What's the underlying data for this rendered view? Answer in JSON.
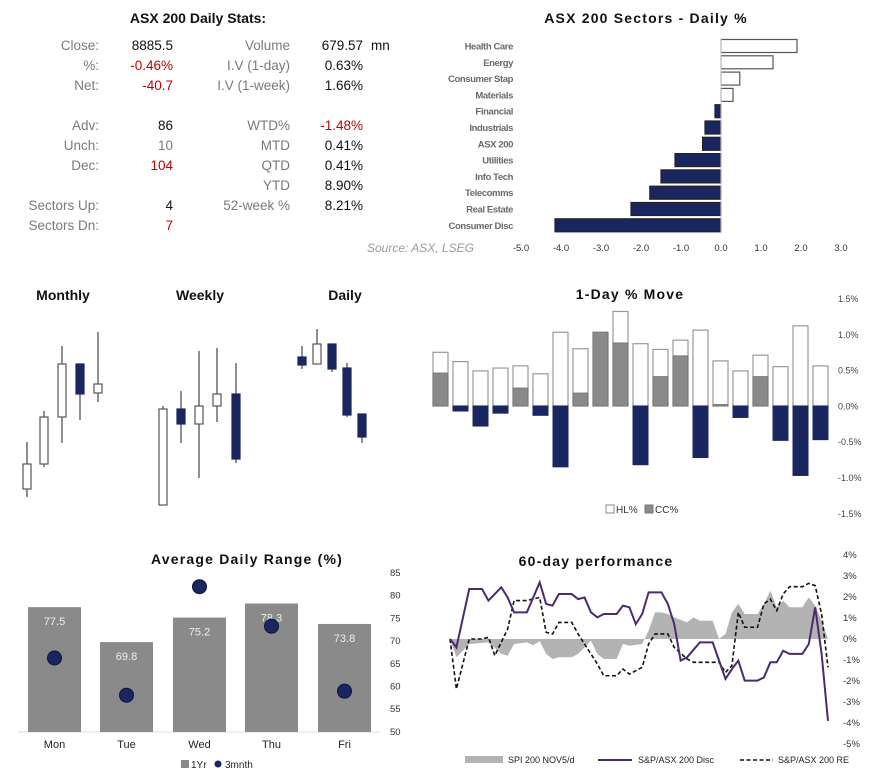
{
  "stats": {
    "title": "ASX 200 Daily Stats:",
    "left": [
      {
        "label": "Close:",
        "value": "8885.5",
        "color": "#111111"
      },
      {
        "label": "%:",
        "value": "-0.46%",
        "color": "#c00000"
      },
      {
        "label": "Net:",
        "value": "-40.7",
        "color": "#c00000"
      },
      {
        "label": "Adv:",
        "value": "86",
        "color": "#111111"
      },
      {
        "label": "Unch:",
        "value": "10",
        "color": "#7a7a7a"
      },
      {
        "label": "Dec:",
        "value": "104",
        "color": "#c00000"
      },
      {
        "label": "Sectors Up:",
        "value": "4",
        "color": "#111111"
      },
      {
        "label": "Sectors Dn:",
        "value": "7",
        "color": "#c00000"
      }
    ],
    "right": [
      {
        "label": "Volume",
        "value": "679.57",
        "unit": "mn",
        "color": "#111111"
      },
      {
        "label": "I.V (1-day)",
        "value": "0.63%",
        "color": "#111111"
      },
      {
        "label": "I.V (1-week)",
        "value": "1.66%",
        "color": "#111111"
      },
      {
        "label": "WTD%",
        "value": "-1.48%",
        "color": "#c00000"
      },
      {
        "label": "MTD",
        "value": "0.41%",
        "color": "#111111"
      },
      {
        "label": "QTD",
        "value": "0.41%",
        "color": "#111111"
      },
      {
        "label": "YTD",
        "value": "8.90%",
        "color": "#111111"
      },
      {
        "label": "52-week %",
        "value": "8.21%",
        "color": "#111111"
      }
    ],
    "source": "Source: ASX, LSEG"
  },
  "colors": {
    "navy": "#1a2660",
    "gray": "#8a8a8a",
    "purple": "#4b2a6e",
    "red": "#c00000"
  },
  "chart_data": [
    {
      "id": "sectors",
      "type": "bar",
      "orientation": "horizontal",
      "title": "ASX 200 Sectors - Daily %",
      "categories": [
        "Health Care",
        "Energy",
        "Consumer Stap",
        "Materials",
        "Financial",
        "Industrials",
        "ASX 200",
        "Utilities",
        "Info Tech",
        "Telecomms",
        "Real Estate",
        "Consumer Disc"
      ],
      "values": [
        1.9,
        1.3,
        0.47,
        0.3,
        -0.15,
        -0.4,
        -0.46,
        -1.15,
        -1.5,
        -1.78,
        -2.25,
        -4.15
      ],
      "xlim": [
        -5,
        3
      ],
      "xticks": [
        "-5.0",
        "-4.0",
        "-3.0",
        "-2.0",
        "-1.0",
        "0.0",
        "1.0",
        "2.0",
        "3.0"
      ]
    },
    {
      "id": "candles",
      "type": "candlestick",
      "panels": [
        {
          "title": "Monthly",
          "candles": [
            "up",
            "up",
            "up",
            "down",
            "up"
          ]
        },
        {
          "title": "Weekly",
          "candles": [
            "up",
            "down",
            "up",
            "up",
            "down"
          ]
        },
        {
          "title": "Daily",
          "candles": [
            "down",
            "up",
            "down",
            "down",
            "down"
          ]
        }
      ]
    },
    {
      "id": "oneday",
      "type": "bar",
      "title": "1-Day % Move",
      "series": [
        {
          "name": "HL%",
          "values": [
            0.75,
            0.62,
            0.49,
            0.53,
            0.56,
            0.45,
            1.03,
            0.8,
            1.03,
            1.32,
            0.87,
            0.79,
            0.92,
            1.06,
            0.63,
            0.49,
            0.71,
            0.55,
            1.12,
            0.56
          ]
        },
        {
          "name": "CC%",
          "values": [
            0.46,
            -0.07,
            -0.28,
            -0.1,
            0.25,
            -0.13,
            -0.85,
            0.18,
            1.03,
            0.88,
            -0.82,
            0.41,
            0.7,
            -0.72,
            0.02,
            -0.16,
            0.41,
            -0.48,
            -0.97,
            -0.47
          ]
        }
      ],
      "ylim": [
        -1.5,
        1.5
      ],
      "yticks": [
        "1.5%",
        "1.0%",
        "0.5%",
        "0.0%",
        "-0.5%",
        "-1.0%",
        "-1.5%"
      ],
      "legend": "bottom"
    },
    {
      "id": "adr",
      "type": "bar",
      "title": "Average Daily Range (%)",
      "categories": [
        "Mon",
        "Tue",
        "Wed",
        "Thu",
        "Fri"
      ],
      "series": [
        {
          "name": "1Yr",
          "values": [
            77.5,
            69.8,
            75.2,
            78.3,
            73.8
          ],
          "labels": [
            "77.5",
            "69.8",
            "75.2",
            "78.3",
            "73.8"
          ]
        },
        {
          "name": "3mnth",
          "values": [
            66.3,
            58.1,
            82.0,
            73.3,
            59.0
          ]
        }
      ],
      "ylim": [
        50,
        85
      ],
      "yticks": [
        "85",
        "80",
        "75",
        "70",
        "65",
        "60",
        "55",
        "50"
      ],
      "legend": "bottom"
    },
    {
      "id": "sixty",
      "type": "line",
      "title": "60-day performance",
      "x_count": 60,
      "series": [
        {
          "name": "SPI 200 NOV5/d",
          "style": "area",
          "points": [
            [
              0,
              0
            ],
            [
              1,
              -0.87
            ],
            [
              3,
              -0.24
            ],
            [
              6,
              -0.16
            ],
            [
              8,
              -0.7
            ],
            [
              9,
              -0.8
            ],
            [
              10,
              -0.24
            ],
            [
              12,
              -0.16
            ],
            [
              13,
              -0.3
            ],
            [
              14,
              -0.1
            ],
            [
              15,
              -0.7
            ],
            [
              16,
              -0.95
            ],
            [
              17,
              -0.87
            ],
            [
              19,
              -0.87
            ],
            [
              20,
              -0.71
            ],
            [
              21,
              -0.4
            ],
            [
              22,
              -0.08
            ],
            [
              23,
              -0.71
            ],
            [
              24,
              -0.95
            ],
            [
              26,
              -0.95
            ],
            [
              27,
              -0.24
            ],
            [
              28,
              -0.32
            ],
            [
              30,
              -0.24
            ],
            [
              31,
              0.4
            ],
            [
              32,
              1.27
            ],
            [
              33,
              1.27
            ],
            [
              34,
              1.19
            ],
            [
              35,
              1.03
            ],
            [
              37,
              0.79
            ],
            [
              38,
              1.03
            ],
            [
              39,
              0.87
            ],
            [
              41,
              0.87
            ],
            [
              42,
              0
            ],
            [
              43,
              0.24
            ],
            [
              44,
              1.27
            ],
            [
              45,
              1.67
            ],
            [
              46,
              1.19
            ],
            [
              48,
              1.19
            ],
            [
              49,
              1.67
            ],
            [
              50,
              2.3
            ],
            [
              51,
              1.51
            ],
            [
              52,
              1.83
            ],
            [
              53,
              1.51
            ],
            [
              55,
              1.51
            ],
            [
              56,
              1.98
            ],
            [
              57,
              1.59
            ],
            [
              58,
              0.87
            ],
            [
              59,
              0
            ]
          ]
        },
        {
          "name": "S&P/ASX 200 Disc",
          "style": "solid",
          "points": [
            [
              0,
              0
            ],
            [
              1,
              -0.4
            ],
            [
              3,
              2.38
            ],
            [
              5,
              2.38
            ],
            [
              6,
              1.83
            ],
            [
              8,
              2.46
            ],
            [
              9,
              1.98
            ],
            [
              10,
              1.27
            ],
            [
              12,
              1.27
            ],
            [
              13,
              1.98
            ],
            [
              14,
              2.7
            ],
            [
              15,
              1.67
            ],
            [
              16,
              1.59
            ],
            [
              17,
              2.14
            ],
            [
              19,
              2.14
            ],
            [
              20,
              1.9
            ],
            [
              21,
              1.98
            ],
            [
              22,
              1.27
            ],
            [
              23,
              1.03
            ],
            [
              24,
              1.19
            ],
            [
              26,
              1.19
            ],
            [
              27,
              1.59
            ],
            [
              28,
              1.51
            ],
            [
              29,
              0.71
            ],
            [
              30,
              1.19
            ],
            [
              31,
              2.22
            ],
            [
              33,
              2.22
            ],
            [
              34,
              1.67
            ],
            [
              35,
              0.71
            ],
            [
              36,
              -1.03
            ],
            [
              37,
              -0.87
            ],
            [
              39,
              -0.16
            ],
            [
              41,
              -0.16
            ],
            [
              42,
              -1.03
            ],
            [
              43,
              -1.9
            ],
            [
              44,
              -1.43
            ],
            [
              45,
              -1.03
            ],
            [
              46,
              -1.98
            ],
            [
              48,
              -1.98
            ],
            [
              49,
              -1.83
            ],
            [
              50,
              -1.11
            ],
            [
              51,
              -1.11
            ],
            [
              52,
              -0.56
            ],
            [
              53,
              -0.71
            ],
            [
              55,
              -0.71
            ],
            [
              56,
              -0.24
            ],
            [
              57,
              1.51
            ],
            [
              58,
              -0.71
            ],
            [
              59,
              -3.9
            ]
          ]
        },
        {
          "name": "S&P/ASX 200 RE",
          "style": "dashed",
          "points": [
            [
              0,
              0
            ],
            [
              1,
              -2.38
            ],
            [
              3,
              0
            ],
            [
              5,
              0
            ],
            [
              6,
              0.08
            ],
            [
              7,
              -0.79
            ],
            [
              9,
              0.48
            ],
            [
              10,
              1.83
            ],
            [
              12,
              1.83
            ],
            [
              14,
              1.98
            ],
            [
              15,
              0.32
            ],
            [
              16,
              0.24
            ],
            [
              17,
              0.79
            ],
            [
              19,
              0.79
            ],
            [
              20,
              0.24
            ],
            [
              21,
              -0.24
            ],
            [
              23,
              -1.19
            ],
            [
              24,
              -1.75
            ],
            [
              26,
              -1.75
            ],
            [
              27,
              -1.43
            ],
            [
              28,
              -1.67
            ],
            [
              30,
              -1.35
            ],
            [
              31,
              -0.24
            ],
            [
              32,
              0.24
            ],
            [
              34,
              0.24
            ],
            [
              35,
              -0.4
            ],
            [
              37,
              -0.95
            ],
            [
              38,
              -1.11
            ],
            [
              42,
              -1.11
            ],
            [
              43,
              -1.59
            ],
            [
              44,
              -1.27
            ],
            [
              45,
              1.27
            ],
            [
              46,
              0.56
            ],
            [
              48,
              0.56
            ],
            [
              49,
              1.67
            ],
            [
              50,
              1.9
            ],
            [
              51,
              1.35
            ],
            [
              52,
              2.14
            ],
            [
              53,
              2.49
            ],
            [
              55,
              2.49
            ],
            [
              56,
              2.65
            ],
            [
              57,
              2.54
            ],
            [
              58,
              1.19
            ],
            [
              59,
              -1.35
            ]
          ]
        }
      ],
      "ylim": [
        -5,
        4
      ],
      "yticks": [
        "4%",
        "3%",
        "2%",
        "1%",
        "0%",
        "-1%",
        "-2%",
        "-3%",
        "-4%",
        "-5%"
      ],
      "legend": "bottom"
    }
  ]
}
